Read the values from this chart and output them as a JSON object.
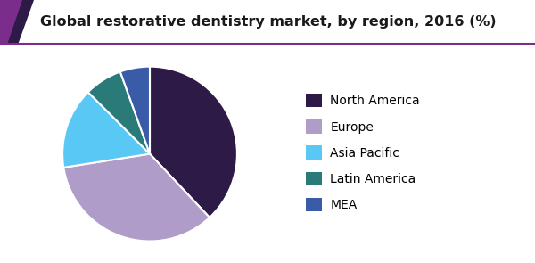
{
  "title": "Global restorative dentistry market, by region, 2016 (%)",
  "labels": [
    "North America",
    "Europe",
    "Asia Pacific",
    "Latin America",
    "MEA"
  ],
  "values": [
    38.0,
    34.5,
    15.0,
    7.0,
    5.5
  ],
  "colors": [
    "#2e1a47",
    "#b09cc8",
    "#5ac8f5",
    "#2a7a7a",
    "#3a5ca8"
  ],
  "startangle": 90,
  "background_color": "#ffffff",
  "title_fontsize": 11.5,
  "legend_fontsize": 10,
  "header_bg": "#ffffff",
  "header_line_color": "#7b2d8b",
  "header_triangle_dark": "#2e1a47",
  "header_triangle_light": "#7b2d8b"
}
